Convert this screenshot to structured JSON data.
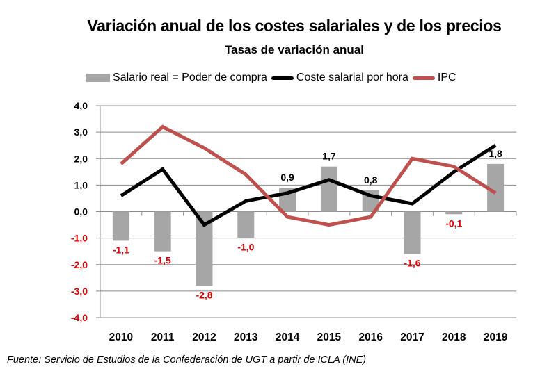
{
  "chart_data": {
    "type": "bar",
    "title": "Variación anual de los costes salariales y de los precios",
    "subtitle": "Tasas de variación anual",
    "xlabel": "",
    "ylabel": "",
    "ylim": [
      -4.0,
      4.0
    ],
    "yticks": [
      "4,0",
      "3,0",
      "2,0",
      "1,0",
      "0,0",
      "-1,0",
      "-2,0",
      "-3,0",
      "-4,0"
    ],
    "ytick_values": [
      4,
      3,
      2,
      1,
      0,
      -1,
      -2,
      -3,
      -4
    ],
    "grid": true,
    "legend_position": "top",
    "categories": [
      "2010",
      "2011",
      "2012",
      "2013",
      "2014",
      "2015",
      "2016",
      "2017",
      "2018",
      "2019"
    ],
    "series": [
      {
        "name": "Salario real = Poder de compra",
        "type": "bar",
        "color": "#a6a6a6",
        "values": [
          -1.1,
          -1.5,
          -2.8,
          -1.0,
          0.9,
          1.7,
          0.8,
          -1.6,
          -0.1,
          1.8
        ],
        "labels": [
          "-1,1",
          "-1,5",
          "-2,8",
          "-1,0",
          "0,9",
          "1,7",
          "0,8",
          "-1,6",
          "-0,1",
          "1,8"
        ]
      },
      {
        "name": "Coste salarial por hora",
        "type": "line",
        "color": "#000000",
        "values": [
          0.6,
          1.6,
          -0.5,
          0.4,
          0.7,
          1.2,
          0.6,
          0.3,
          1.5,
          2.5
        ]
      },
      {
        "name": "IPC",
        "type": "line",
        "color": "#c0504d",
        "values": [
          1.8,
          3.2,
          2.4,
          1.4,
          -0.2,
          -0.5,
          -0.2,
          2.0,
          1.7,
          0.7
        ]
      }
    ],
    "colors": {
      "negative_label": "#e00000",
      "positive_label": "#000000",
      "grid": "#8c8c8c"
    },
    "source": "Fuente: Servicio de Estudios de la Confederación de UGT a partir de ICLA (INE)"
  }
}
